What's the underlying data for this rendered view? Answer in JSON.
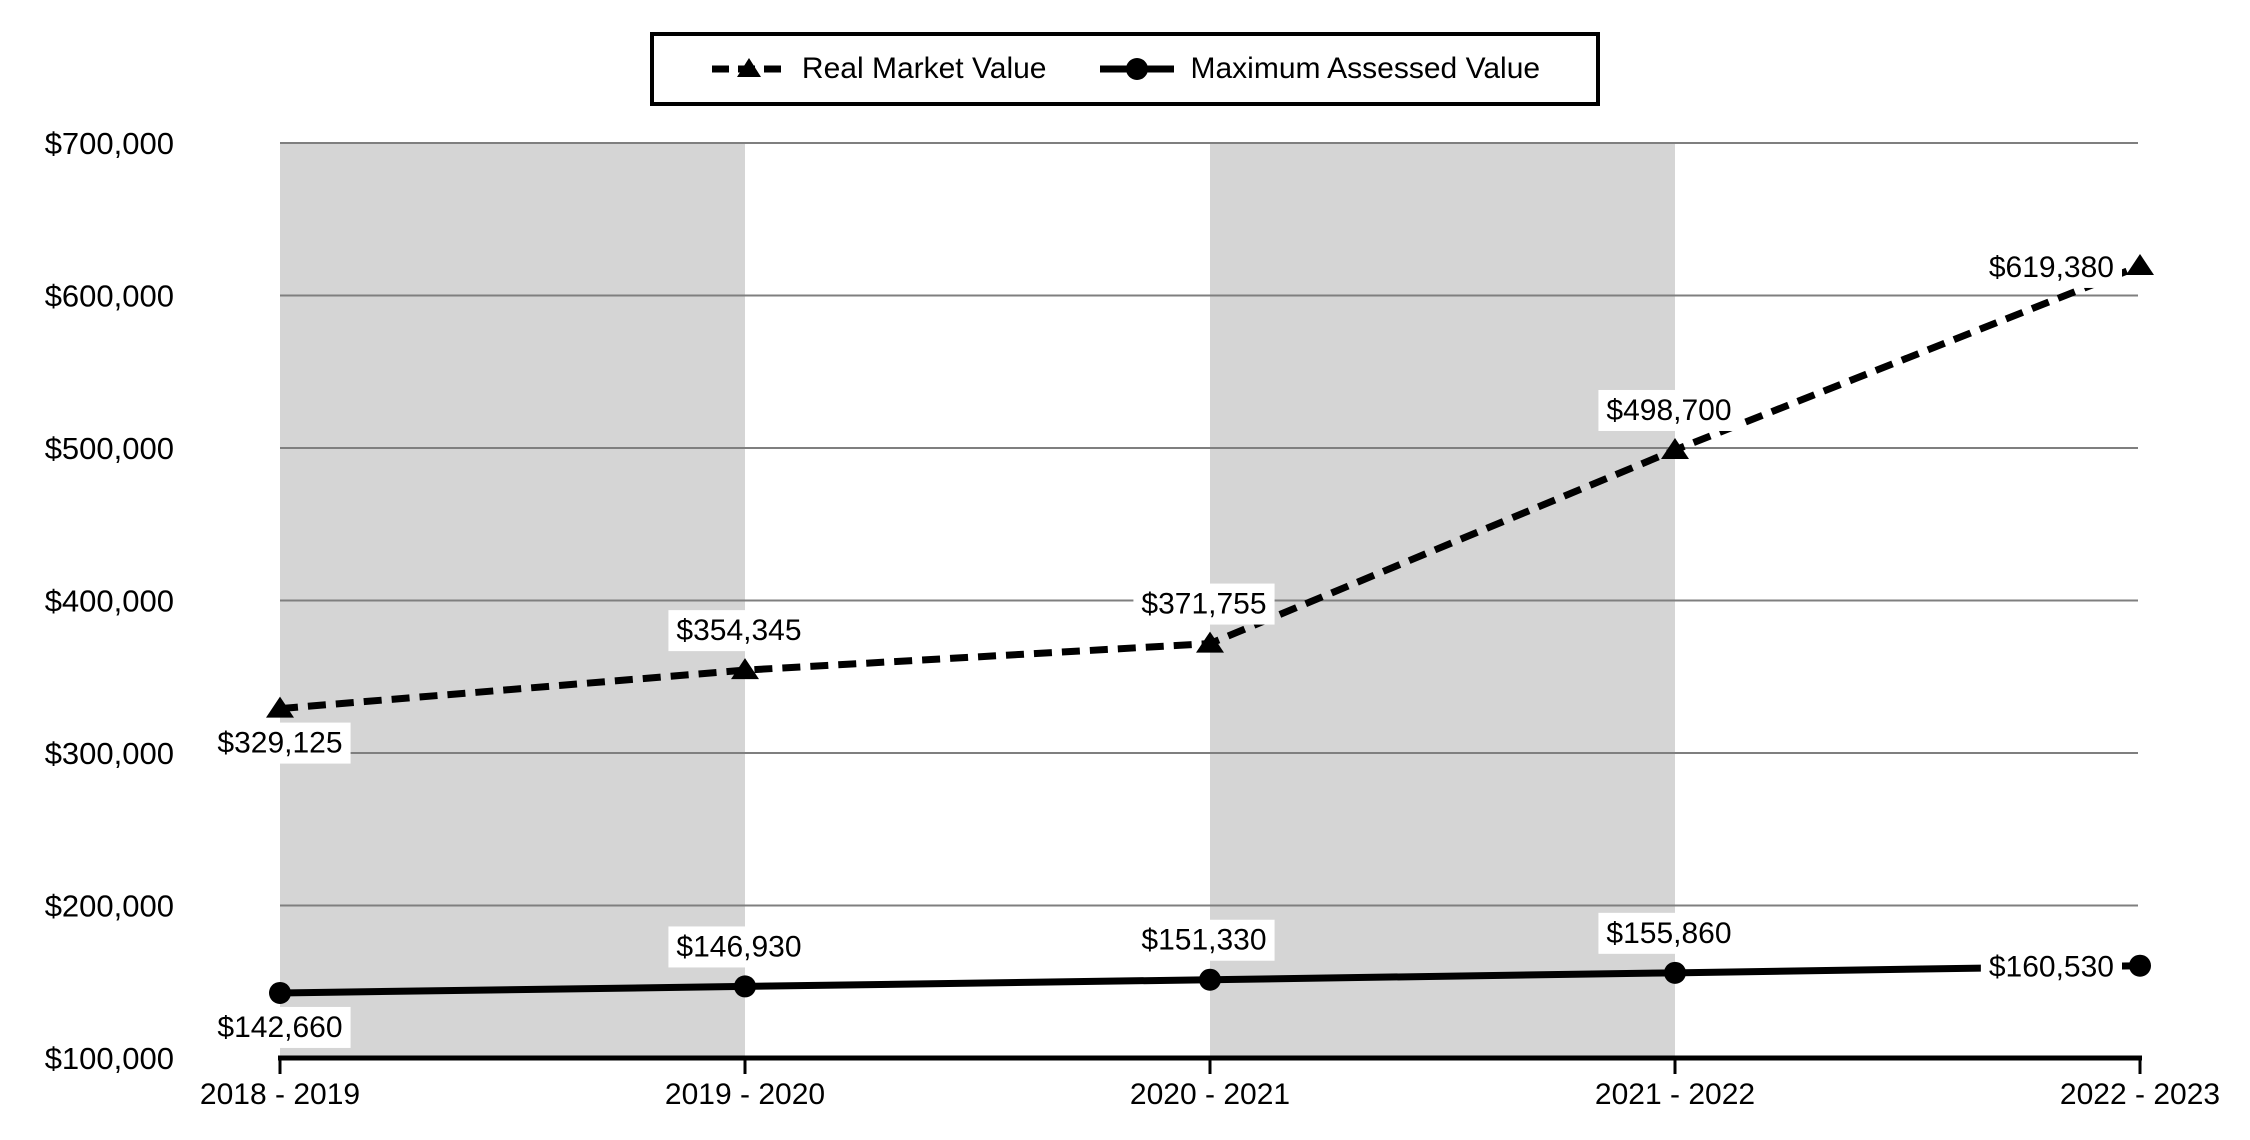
{
  "chart_data": {
    "type": "line",
    "title": "",
    "categories": [
      "2018 - 2019",
      "2019 - 2020",
      "2020 - 2021",
      "2021 - 2022",
      "2022 - 2023"
    ],
    "series": [
      {
        "name": "Real Market Value",
        "line_style": "dashed",
        "marker": "triangle",
        "color": "#000000",
        "values": [
          329125,
          354345,
          371755,
          498700,
          619380
        ],
        "data_labels": [
          "$329,125",
          "$354,345",
          "$371,755",
          "$498,700",
          "$619,380"
        ]
      },
      {
        "name": "Maximum Assessed Value",
        "line_style": "solid",
        "marker": "circle",
        "color": "#000000",
        "values": [
          142660,
          146930,
          151330,
          155860,
          160530
        ],
        "data_labels": [
          "$142,660",
          "$146,930",
          "$151,330",
          "$155,860",
          "$160,530"
        ]
      }
    ],
    "y_axis": {
      "min": 100000,
      "max": 700000,
      "step": 100000,
      "tick_labels": [
        "$100,000",
        "$200,000",
        "$300,000",
        "$400,000",
        "$500,000",
        "$600,000",
        "$700,000"
      ]
    },
    "legend_position": "top",
    "grid": true,
    "shaded_column_bands": [
      [
        0,
        1
      ],
      [
        2,
        3
      ]
    ],
    "label_anchors": [
      "below",
      "above",
      "above",
      "above",
      "side"
    ],
    "colors": {
      "band": "#d5d5d5",
      "gridline": "#7f7f7f",
      "axis": "#000000",
      "text": "#000000",
      "background": "#ffffff",
      "data_label_background": "#ffffff"
    }
  }
}
